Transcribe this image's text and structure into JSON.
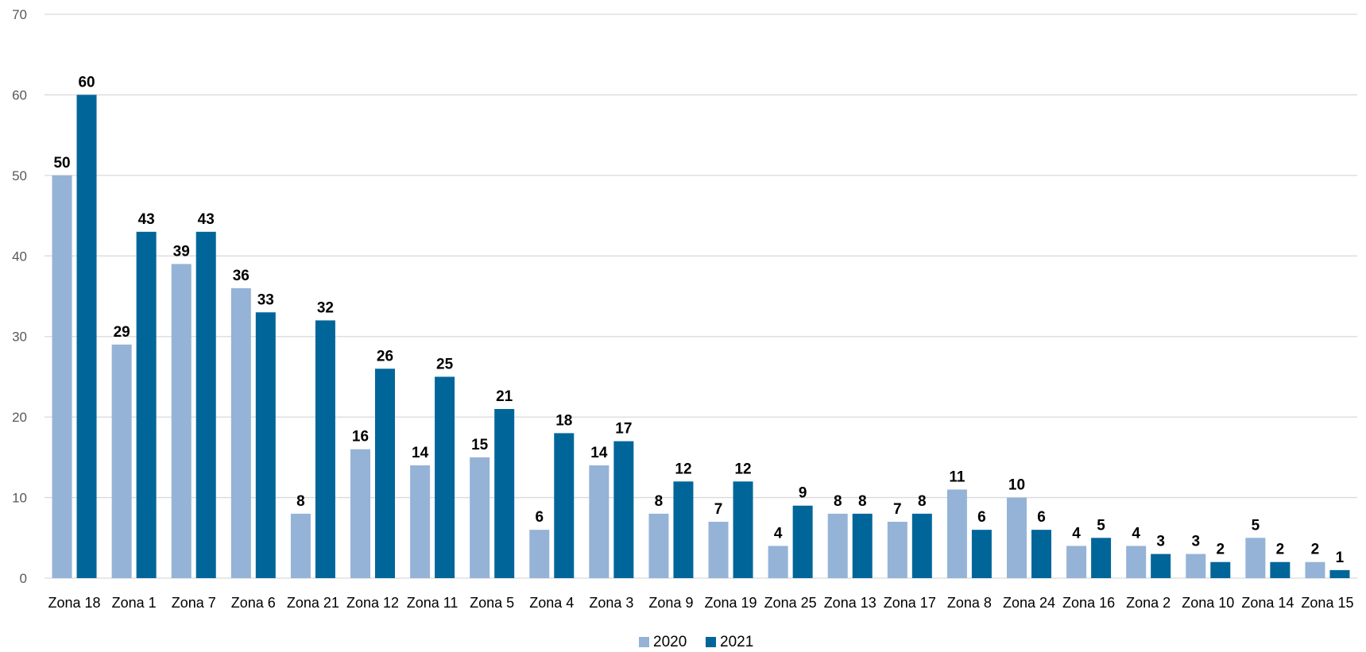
{
  "chart_data": {
    "type": "bar",
    "categories": [
      "Zona 18",
      "Zona 1",
      "Zona 7",
      "Zona 6",
      "Zona 21",
      "Zona 12",
      "Zona 11",
      "Zona 5",
      "Zona 4",
      "Zona 3",
      "Zona 9",
      "Zona 19",
      "Zona 25",
      "Zona 13",
      "Zona 17",
      "Zona 8",
      "Zona 24",
      "Zona 16",
      "Zona 2",
      "Zona 10",
      "Zona 14",
      "Zona 15"
    ],
    "series": [
      {
        "name": "2020",
        "color": "#95b3d7",
        "values": [
          50,
          29,
          39,
          36,
          8,
          16,
          14,
          15,
          6,
          14,
          8,
          7,
          4,
          8,
          7,
          11,
          10,
          4,
          4,
          3,
          5,
          2
        ]
      },
      {
        "name": "2021",
        "color": "#006699",
        "values": [
          60,
          43,
          43,
          33,
          32,
          26,
          25,
          21,
          18,
          17,
          12,
          12,
          9,
          8,
          8,
          6,
          6,
          5,
          3,
          2,
          2,
          1
        ]
      }
    ],
    "ylim": [
      0,
      70
    ],
    "yticks": [
      0,
      10,
      20,
      30,
      40,
      50,
      60,
      70
    ],
    "grid": true,
    "data_labels": true,
    "legend": "bottom-center"
  }
}
